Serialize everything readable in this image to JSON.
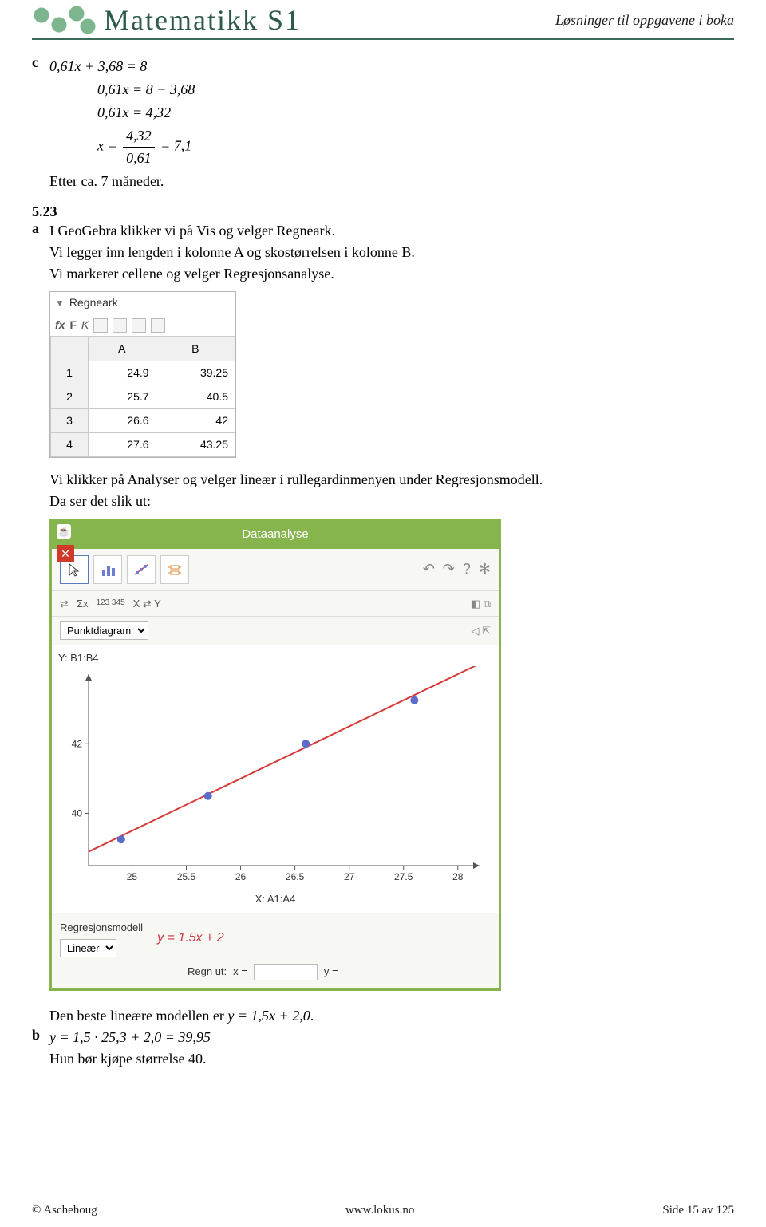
{
  "header": {
    "brand": "Matematikk S1",
    "subtitle": "Løsninger til oppgavene i boka"
  },
  "ex_c": {
    "label": "c",
    "lines": [
      "0,61x + 3,68 = 8",
      "0,61x = 8 − 3,68",
      "0,61x = 4,32"
    ],
    "frac_num": "4,32",
    "frac_den": "0,61",
    "frac_prefix": "x =",
    "frac_result": "= 7,1",
    "after": "Etter ca. 7 måneder."
  },
  "ex_523": {
    "num": "5.23",
    "a_label": "a",
    "a_text_1": "I GeoGebra klikker vi på Vis og velger Regneark.",
    "a_text_2": "Vi legger inn lengden i kolonne A og skostørrelsen i kolonne B.",
    "a_text_3": "Vi markerer cellene og velger Regresjonsanalyse."
  },
  "regneark": {
    "title": "Regneark",
    "toolbar": {
      "fx": "fx",
      "F": "F",
      "K": "K"
    },
    "cols": [
      "",
      "A",
      "B"
    ],
    "rows": [
      [
        "1",
        "24.9",
        "39.25"
      ],
      [
        "2",
        "25.7",
        "40.5"
      ],
      [
        "3",
        "26.6",
        "42"
      ],
      [
        "4",
        "27.6",
        "43.25"
      ]
    ]
  },
  "midtext": {
    "l1": "Vi klikker på Analyser og velger lineær i rullegardinmenyen under Regresjonsmodell.",
    "l2": "Da ser det slik ut:"
  },
  "dataanalyse": {
    "title": "Dataanalyse",
    "secbar_labels": [
      "Σx",
      "123 345",
      "X ⇄ Y"
    ],
    "chart_type": "Punktdiagram",
    "y_label": "Y: B1:B4",
    "x_label": "X: A1:A4",
    "x_ticks": [
      25,
      25.5,
      26,
      26.5,
      27,
      27.5,
      28
    ],
    "y_ticks": [
      40,
      42
    ],
    "points": [
      {
        "x": 24.9,
        "y": 39.25
      },
      {
        "x": 25.7,
        "y": 40.5
      },
      {
        "x": 26.6,
        "y": 42.0
      },
      {
        "x": 27.6,
        "y": 43.25
      }
    ],
    "line": {
      "slope": 1.5,
      "intercept": 2.0
    },
    "point_color": "#5b6dc8",
    "line_color": "#d63a3a",
    "axis_color": "#555555",
    "reg_label": "Regresjonsmodell",
    "reg_select": "Lineær",
    "equation": "y = 1.5x + 2",
    "calc_label": "Regn ut:",
    "x_eq": "x =",
    "y_eq": "y ="
  },
  "after_panel": {
    "l1_pre": "Den beste lineære modellen er ",
    "l1_eq": "y = 1,5x + 2,0",
    "l1_post": ".",
    "b_label": "b",
    "b_eq": "y = 1,5 · 25,3 + 2,0 = 39,95",
    "b_text": "Hun bør kjøpe størrelse 40."
  },
  "footer": {
    "left": "© Aschehoug",
    "mid": "www.lokus.no",
    "right": "Side 15 av 125"
  }
}
